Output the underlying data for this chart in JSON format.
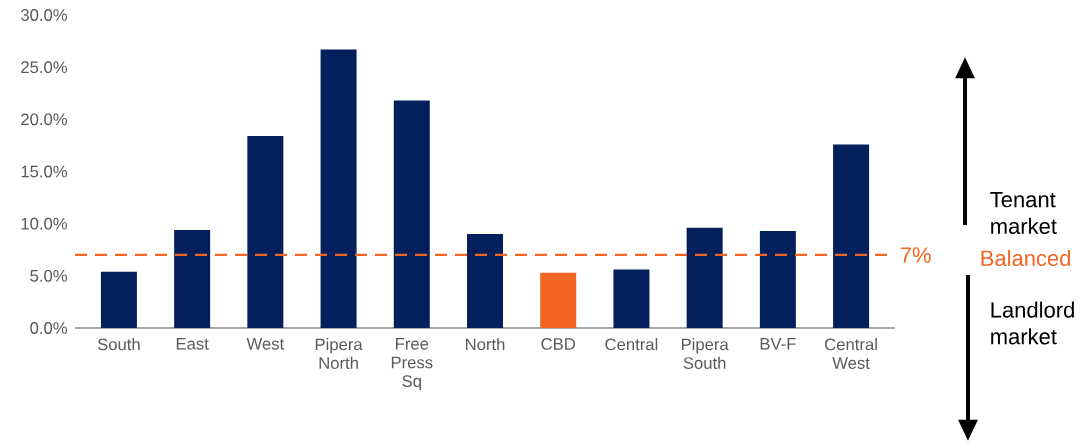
{
  "chart_data": {
    "type": "bar",
    "categories": [
      "South",
      "East",
      "West",
      "Pipera North",
      "Free Press Sq",
      "North",
      "CBD",
      "Central",
      "Pipera South",
      "BV-F",
      "Central West"
    ],
    "values": [
      5.4,
      9.4,
      18.4,
      26.7,
      21.8,
      9.0,
      5.3,
      5.6,
      9.6,
      9.3,
      17.6
    ],
    "colors": [
      "#03205c",
      "#03205c",
      "#03205c",
      "#03205c",
      "#03205c",
      "#03205c",
      "#f26522",
      "#03205c",
      "#03205c",
      "#03205c",
      "#03205c"
    ],
    "ylim": [
      0,
      30
    ],
    "yticks": [
      {
        "value": 0,
        "label": "0.0%"
      },
      {
        "value": 5,
        "label": "5.0%"
      },
      {
        "value": 10,
        "label": "10.0%"
      },
      {
        "value": 15,
        "label": "15.0%"
      },
      {
        "value": 20,
        "label": "20.0%"
      },
      {
        "value": 25,
        "label": "25.0%"
      },
      {
        "value": 30,
        "label": "30.0%"
      }
    ],
    "ref_lines": [
      {
        "axis": "y",
        "value": 7,
        "label": "7%",
        "color": "#f26522",
        "line_style": "dashed"
      }
    ],
    "annotations": [
      "Tenant market",
      "Balanced",
      "Landlord market"
    ],
    "grid": false
  }
}
